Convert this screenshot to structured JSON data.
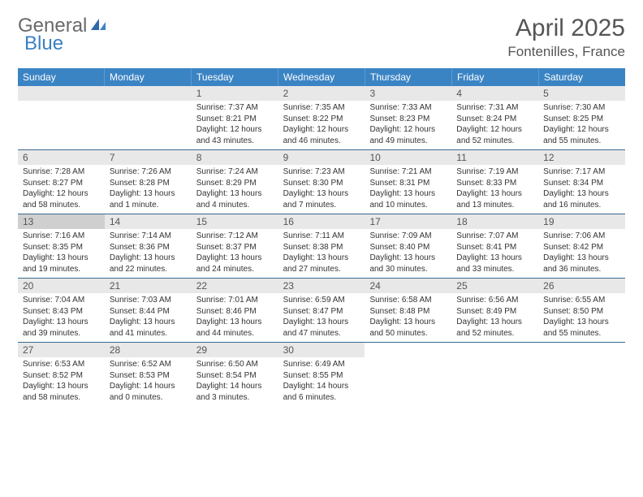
{
  "logo": {
    "text1": "General",
    "text2": "Blue"
  },
  "title": "April 2025",
  "location": "Fontenilles, France",
  "daysOfWeek": [
    "Sunday",
    "Monday",
    "Tuesday",
    "Wednesday",
    "Thursday",
    "Friday",
    "Saturday"
  ],
  "colors": {
    "headerBar": "#3b84c4",
    "headerText": "#ffffff",
    "dayBar": "#e8e8e8",
    "dayBarHighlight": "#cfcfcf",
    "rowBorder": "#3b6a8f",
    "bodyText": "#333333",
    "titleText": "#555555",
    "logoGray": "#6a6a6a",
    "logoBlue": "#3b7fc4",
    "background": "#ffffff"
  },
  "typography": {
    "titleFontSize": 30,
    "locationFontSize": 17,
    "dowFontSize": 12,
    "dayNumFontSize": 12,
    "bodyFontSize": 10,
    "logoFontSize": 24
  },
  "layout": {
    "columns": 7,
    "rows": 5,
    "startOffset": 2
  },
  "days": [
    {
      "n": "1",
      "sr": "7:37 AM",
      "ss": "8:21 PM",
      "dl": "12 hours and 43 minutes."
    },
    {
      "n": "2",
      "sr": "7:35 AM",
      "ss": "8:22 PM",
      "dl": "12 hours and 46 minutes."
    },
    {
      "n": "3",
      "sr": "7:33 AM",
      "ss": "8:23 PM",
      "dl": "12 hours and 49 minutes."
    },
    {
      "n": "4",
      "sr": "7:31 AM",
      "ss": "8:24 PM",
      "dl": "12 hours and 52 minutes."
    },
    {
      "n": "5",
      "sr": "7:30 AM",
      "ss": "8:25 PM",
      "dl": "12 hours and 55 minutes."
    },
    {
      "n": "6",
      "sr": "7:28 AM",
      "ss": "8:27 PM",
      "dl": "12 hours and 58 minutes."
    },
    {
      "n": "7",
      "sr": "7:26 AM",
      "ss": "8:28 PM",
      "dl": "13 hours and 1 minute."
    },
    {
      "n": "8",
      "sr": "7:24 AM",
      "ss": "8:29 PM",
      "dl": "13 hours and 4 minutes."
    },
    {
      "n": "9",
      "sr": "7:23 AM",
      "ss": "8:30 PM",
      "dl": "13 hours and 7 minutes."
    },
    {
      "n": "10",
      "sr": "7:21 AM",
      "ss": "8:31 PM",
      "dl": "13 hours and 10 minutes."
    },
    {
      "n": "11",
      "sr": "7:19 AM",
      "ss": "8:33 PM",
      "dl": "13 hours and 13 minutes."
    },
    {
      "n": "12",
      "sr": "7:17 AM",
      "ss": "8:34 PM",
      "dl": "13 hours and 16 minutes."
    },
    {
      "n": "13",
      "sr": "7:16 AM",
      "ss": "8:35 PM",
      "dl": "13 hours and 19 minutes.",
      "hl": true
    },
    {
      "n": "14",
      "sr": "7:14 AM",
      "ss": "8:36 PM",
      "dl": "13 hours and 22 minutes."
    },
    {
      "n": "15",
      "sr": "7:12 AM",
      "ss": "8:37 PM",
      "dl": "13 hours and 24 minutes."
    },
    {
      "n": "16",
      "sr": "7:11 AM",
      "ss": "8:38 PM",
      "dl": "13 hours and 27 minutes."
    },
    {
      "n": "17",
      "sr": "7:09 AM",
      "ss": "8:40 PM",
      "dl": "13 hours and 30 minutes."
    },
    {
      "n": "18",
      "sr": "7:07 AM",
      "ss": "8:41 PM",
      "dl": "13 hours and 33 minutes."
    },
    {
      "n": "19",
      "sr": "7:06 AM",
      "ss": "8:42 PM",
      "dl": "13 hours and 36 minutes."
    },
    {
      "n": "20",
      "sr": "7:04 AM",
      "ss": "8:43 PM",
      "dl": "13 hours and 39 minutes."
    },
    {
      "n": "21",
      "sr": "7:03 AM",
      "ss": "8:44 PM",
      "dl": "13 hours and 41 minutes."
    },
    {
      "n": "22",
      "sr": "7:01 AM",
      "ss": "8:46 PM",
      "dl": "13 hours and 44 minutes."
    },
    {
      "n": "23",
      "sr": "6:59 AM",
      "ss": "8:47 PM",
      "dl": "13 hours and 47 minutes."
    },
    {
      "n": "24",
      "sr": "6:58 AM",
      "ss": "8:48 PM",
      "dl": "13 hours and 50 minutes."
    },
    {
      "n": "25",
      "sr": "6:56 AM",
      "ss": "8:49 PM",
      "dl": "13 hours and 52 minutes."
    },
    {
      "n": "26",
      "sr": "6:55 AM",
      "ss": "8:50 PM",
      "dl": "13 hours and 55 minutes."
    },
    {
      "n": "27",
      "sr": "6:53 AM",
      "ss": "8:52 PM",
      "dl": "13 hours and 58 minutes."
    },
    {
      "n": "28",
      "sr": "6:52 AM",
      "ss": "8:53 PM",
      "dl": "14 hours and 0 minutes."
    },
    {
      "n": "29",
      "sr": "6:50 AM",
      "ss": "8:54 PM",
      "dl": "14 hours and 3 minutes."
    },
    {
      "n": "30",
      "sr": "6:49 AM",
      "ss": "8:55 PM",
      "dl": "14 hours and 6 minutes."
    }
  ],
  "labels": {
    "sunrise": "Sunrise: ",
    "sunset": "Sunset: ",
    "daylight": "Daylight: "
  }
}
